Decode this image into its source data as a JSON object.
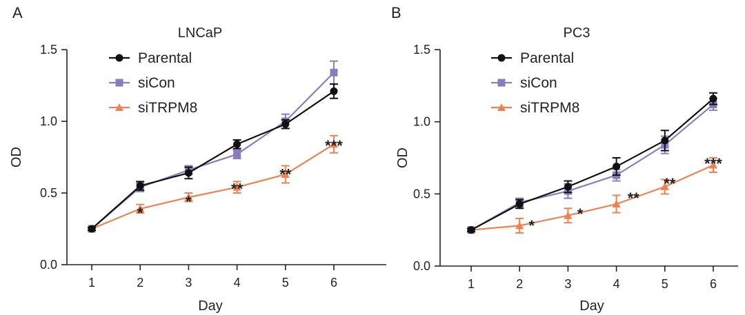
{
  "chart_data": [
    {
      "type": "line",
      "panel": "A",
      "title": "LNCaP",
      "xlabel": "Day",
      "ylabel": "OD",
      "x": [
        1,
        2,
        3,
        4,
        5,
        6
      ],
      "xticks": [
        "1",
        "2",
        "3",
        "4",
        "5",
        "6"
      ],
      "ylim": [
        0,
        1.5
      ],
      "yticks": [
        "0.0",
        "0.5",
        "1.0",
        "1.5"
      ],
      "legend_position": "top-left",
      "series": [
        {
          "name": "Parental",
          "color": "#111111",
          "marker": "circle",
          "values": [
            0.25,
            0.55,
            0.64,
            0.84,
            0.98,
            1.21
          ],
          "errors": [
            0.01,
            0.03,
            0.04,
            0.03,
            0.03,
            0.05
          ]
        },
        {
          "name": "siCon",
          "color": "#8A7CC0",
          "marker": "square",
          "values": [
            0.25,
            0.54,
            0.66,
            0.77,
            1.0,
            1.34
          ],
          "errors": [
            0.01,
            0.03,
            0.03,
            0.03,
            0.05,
            0.08
          ]
        },
        {
          "name": "siTRPM8",
          "color": "#F08050",
          "marker": "triangle",
          "values": [
            0.25,
            0.39,
            0.47,
            0.54,
            0.63,
            0.84
          ],
          "errors": [
            0.01,
            0.03,
            0.03,
            0.04,
            0.06,
            0.06
          ]
        }
      ],
      "annotations": [
        {
          "x": 2,
          "text": "*",
          "y": 0.41
        },
        {
          "x": 3,
          "text": "*",
          "y": 0.49
        },
        {
          "x": 4,
          "text": "**",
          "y": 0.58
        },
        {
          "x": 5,
          "text": "**",
          "y": 0.68
        },
        {
          "x": 6,
          "text": "***",
          "y": 0.88
        }
      ]
    },
    {
      "type": "line",
      "panel": "B",
      "title": "PC3",
      "xlabel": "Day",
      "ylabel": "OD",
      "x": [
        1,
        2,
        3,
        4,
        5,
        6
      ],
      "xticks": [
        "1",
        "2",
        "3",
        "4",
        "5",
        "6"
      ],
      "ylim": [
        0,
        1.5
      ],
      "yticks": [
        "0.0",
        "0.5",
        "1.0",
        "1.5"
      ],
      "legend_position": "top-left",
      "series": [
        {
          "name": "Parental",
          "color": "#111111",
          "marker": "circle",
          "values": [
            0.25,
            0.43,
            0.55,
            0.69,
            0.87,
            1.16
          ],
          "errors": [
            0.01,
            0.03,
            0.04,
            0.06,
            0.07,
            0.04
          ]
        },
        {
          "name": "siCon",
          "color": "#8A7CC0",
          "marker": "square",
          "values": [
            0.25,
            0.44,
            0.52,
            0.63,
            0.84,
            1.12
          ],
          "errors": [
            0.01,
            0.03,
            0.05,
            0.04,
            0.06,
            0.04
          ]
        },
        {
          "name": "siTRPM8",
          "color": "#F08050",
          "marker": "triangle",
          "values": [
            0.25,
            0.28,
            0.35,
            0.43,
            0.55,
            0.7
          ],
          "errors": [
            0.01,
            0.05,
            0.05,
            0.06,
            0.05,
            0.05
          ]
        }
      ],
      "annotations": [
        {
          "x": 2.25,
          "text": "*",
          "y": 0.33
        },
        {
          "x": 3.25,
          "text": "*",
          "y": 0.41
        },
        {
          "x": 4.35,
          "text": "**",
          "y": 0.52
        },
        {
          "x": 5.1,
          "text": "**",
          "y": 0.62
        },
        {
          "x": 6,
          "text": "***",
          "y": 0.76
        }
      ]
    }
  ]
}
